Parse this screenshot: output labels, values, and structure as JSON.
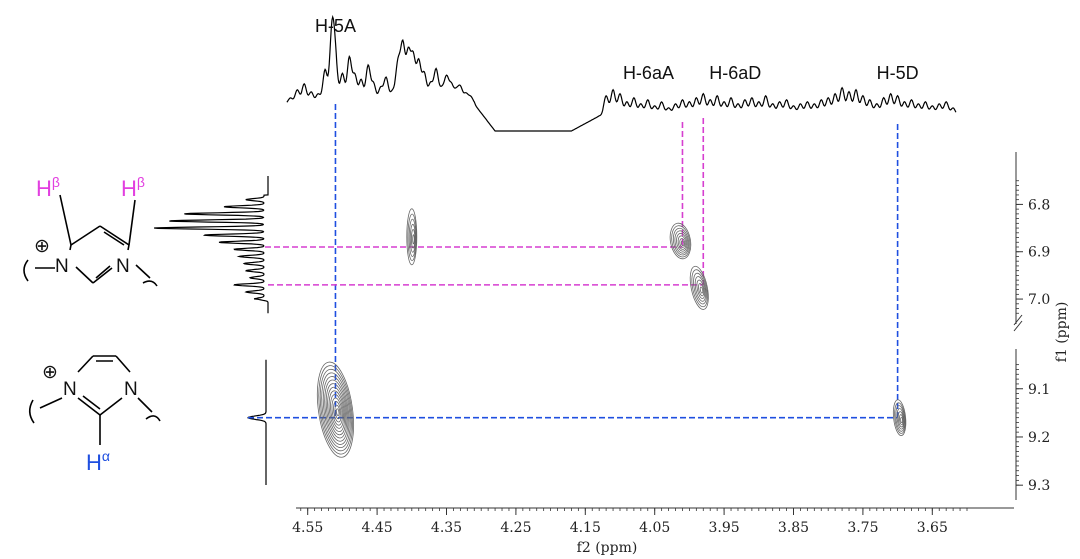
{
  "chart_data": {
    "type": "2d-nmr",
    "x_axis": {
      "label": "f2 (ppm)",
      "ticks": [
        "4.55",
        "4.45",
        "4.35",
        "4.25",
        "4.15",
        "4.05",
        "3.95",
        "3.85",
        "3.75",
        "3.65"
      ],
      "range": [
        4.6,
        3.6
      ],
      "reversed": true
    },
    "y_axis": {
      "label": "f1 (ppm)",
      "upper_ticks": [
        "6.8",
        "6.9",
        "7.0"
      ],
      "upper_range": [
        6.74,
        7.04
      ],
      "lower_ticks": [
        "9.1",
        "9.2",
        "9.3"
      ],
      "lower_range": [
        9.03,
        9.31
      ],
      "axis_break": true
    },
    "peak_labels": [
      {
        "text": "H-5A",
        "ppm": 4.51
      },
      {
        "text": "H-6aA",
        "ppm": 4.01
      },
      {
        "text": "H-6aD",
        "ppm": 3.98
      },
      {
        "text": "H-5D",
        "ppm": 3.7
      }
    ],
    "cross_peaks": [
      {
        "f2": 4.51,
        "f1": 9.16,
        "color": "#1f4fe0"
      },
      {
        "f2": 3.7,
        "f1": 9.16,
        "color": "#1f4fe0"
      },
      {
        "f2": 4.01,
        "f1": 6.89,
        "color": "#d63fd0"
      },
      {
        "f2": 3.98,
        "f1": 6.97,
        "color": "#d63fd0"
      },
      {
        "f2": 4.4,
        "f1": 6.86,
        "color": "#666666"
      }
    ],
    "grid": false
  },
  "molecules": {
    "top": {
      "h_label": "H",
      "sup": "β",
      "n1": "N",
      "n2": "N",
      "charge": "⊕",
      "color": "#e23fe0"
    },
    "bottom": {
      "h_label": "H",
      "sup": "α",
      "n1": "N",
      "n2": "N",
      "charge": "⊕",
      "color": "#1f4fe0"
    }
  }
}
